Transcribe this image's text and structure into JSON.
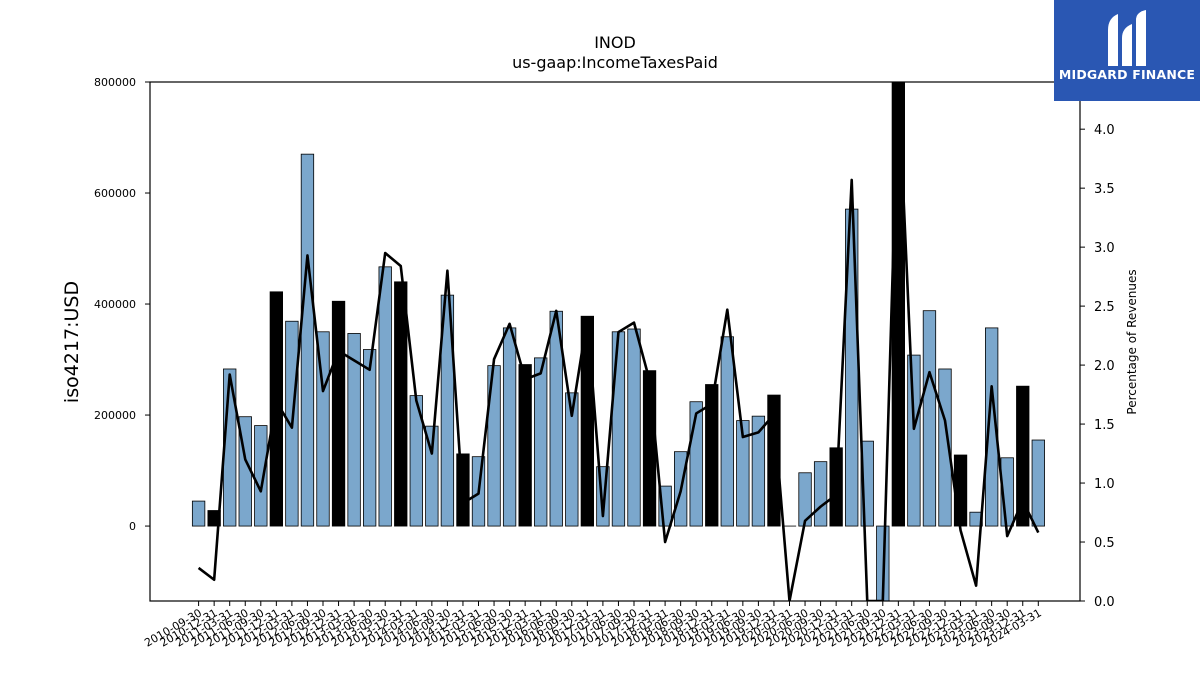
{
  "chart_data": {
    "type": "bar",
    "title": "INOD",
    "subtitle": "us-gaap:IncomeTaxesPaid",
    "ylabel": "iso4217:USD",
    "y2label": "Percentage of Revenues",
    "ylim": [
      -135000,
      800000
    ],
    "y2lim": [
      0.0,
      4.4
    ],
    "yticks": [
      "0",
      "200000",
      "400000",
      "600000",
      "800000"
    ],
    "y2ticks": [
      "0.0",
      "0.5",
      "1.0",
      "1.5",
      "2.0",
      "2.5",
      "3.0",
      "3.5",
      "4.0"
    ],
    "categories": [
      "2010-09-30",
      "2010-12-31",
      "2011-03-31",
      "2011-06-30",
      "2011-09-30",
      "2011-12-31",
      "2012-03-31",
      "2012-06-30",
      "2012-09-30",
      "2012-12-31",
      "2013-03-31",
      "2013-06-30",
      "2013-09-30",
      "2013-12-31",
      "2014-03-31",
      "2014-06-30",
      "2014-09-30",
      "2014-12-31",
      "2015-03-31",
      "2015-06-30",
      "2015-09-30",
      "2015-12-31",
      "2016-03-31",
      "2016-06-30",
      "2016-09-30",
      "2016-12-31",
      "2017-03-31",
      "2017-06-30",
      "2017-09-30",
      "2017-12-31",
      "2018-03-31",
      "2018-06-30",
      "2018-09-30",
      "2018-12-31",
      "2019-03-31",
      "2019-06-30",
      "2019-09-30",
      "2019-12-31",
      "2020-03-31",
      "2020-06-30",
      "2020-09-30",
      "2020-12-31",
      "2021-03-31",
      "2021-06-30",
      "2021-09-30",
      "2021-12-31",
      "2022-03-31",
      "2022-06-30",
      "2022-09-30",
      "2022-12-31",
      "2023-03-31",
      "2023-06-30",
      "2023-09-30",
      "2023-12-31",
      "2024-03-31"
    ],
    "values": [
      45000,
      28000,
      283000,
      197000,
      181000,
      422000,
      369000,
      670000,
      350000,
      405000,
      347000,
      318000,
      467000,
      440000,
      235000,
      180000,
      416000,
      130000,
      125000,
      289000,
      357000,
      291000,
      303000,
      387000,
      240000,
      378000,
      107000,
      350000,
      355000,
      280000,
      72000,
      134000,
      224000,
      255000,
      341000,
      190000,
      198000,
      236000,
      0,
      96000,
      116000,
      141000,
      571000,
      153000,
      -135000,
      800000,
      308000,
      388000,
      283000,
      128000,
      25000,
      357000,
      123000,
      252000,
      155000
    ],
    "q4_highlight": [
      false,
      true,
      false,
      false,
      false,
      true,
      false,
      false,
      false,
      true,
      false,
      false,
      false,
      true,
      false,
      false,
      false,
      true,
      false,
      false,
      false,
      true,
      false,
      false,
      false,
      true,
      false,
      false,
      false,
      true,
      false,
      false,
      false,
      true,
      false,
      false,
      false,
      true,
      false,
      false,
      false,
      true,
      false,
      false,
      false,
      true,
      false,
      false,
      false,
      true,
      false,
      false,
      false,
      true,
      false
    ],
    "series": [
      {
        "values": [
          0.28,
          0.18,
          1.92,
          1.2,
          0.93,
          1.69,
          1.47,
          2.93,
          1.78,
          2.12,
          2.04,
          1.96,
          2.95,
          2.84,
          1.7,
          1.25,
          2.8,
          0.83,
          0.91,
          2.05,
          2.35,
          1.88,
          1.93,
          2.46,
          1.57,
          2.4,
          0.72,
          2.28,
          2.36,
          1.87,
          0.5,
          0.93,
          1.59,
          1.67,
          2.47,
          1.39,
          1.43,
          1.58,
          0.0,
          0.68,
          0.8,
          0.9,
          3.57,
          0.0,
          0.0,
          4.4,
          1.46,
          1.94,
          1.53,
          0.6,
          0.13,
          1.82,
          0.55,
          0.85,
          0.58
        ]
      }
    ],
    "colors": {
      "bar": "#7ba7cc",
      "bar_highlight": "#000000",
      "line": "#000000"
    },
    "grid": false
  },
  "brand": {
    "name": "MIDGARD FINANCE",
    "bg": "#2a57b3"
  }
}
